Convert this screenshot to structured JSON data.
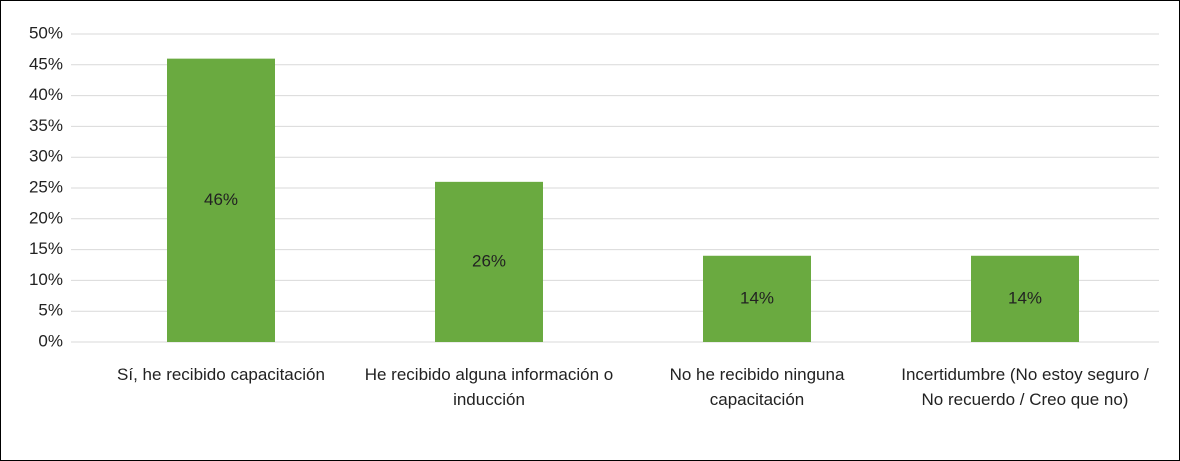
{
  "chart_data": {
    "type": "bar",
    "categories": [
      "Sí, he recibido capacitación",
      "He recibido alguna información o inducción",
      "No he recibido ninguna capacitación",
      "Incertidumbre (No estoy seguro / No recuerdo / Creo que no)"
    ],
    "values": [
      46,
      26,
      14,
      14
    ],
    "value_labels": [
      "46%",
      "26%",
      "14%",
      "14%"
    ],
    "color": "#6aaa40",
    "ylim": [
      0,
      50
    ],
    "yticks": [
      {
        "value": 0,
        "label": "0%"
      },
      {
        "value": 5,
        "label": "5%"
      },
      {
        "value": 10,
        "label": "10%"
      },
      {
        "value": 15,
        "label": "15%"
      },
      {
        "value": 20,
        "label": "20%"
      },
      {
        "value": 25,
        "label": "25%"
      },
      {
        "value": 30,
        "label": "30%"
      },
      {
        "value": 35,
        "label": "35%"
      },
      {
        "value": 40,
        "label": "40%"
      },
      {
        "value": 45,
        "label": "45%"
      },
      {
        "value": 50,
        "label": "50%"
      }
    ],
    "grid": true
  }
}
